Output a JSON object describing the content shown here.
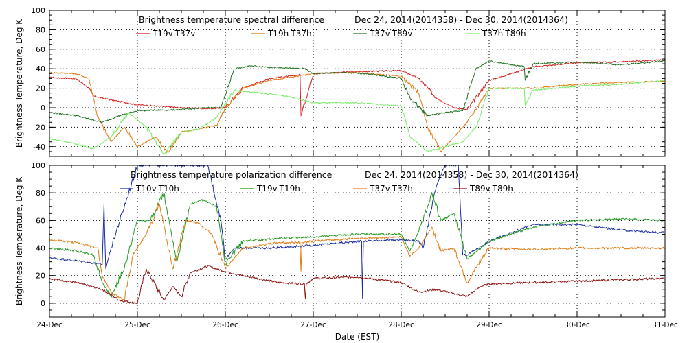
{
  "chart_data": [
    {
      "type": "line",
      "title": "Brightness temperature spectral difference",
      "period": "Dec 24, 2014(2014358) - Dec 30, 2014(2014364)",
      "ylabel": "Brightness Temperature, Deg K",
      "xlabel": "",
      "xlim": [
        "2014-12-24",
        "2014-12-31"
      ],
      "ylim": [
        -50,
        100
      ],
      "yticks": [
        -40,
        -20,
        0,
        20,
        40,
        60,
        80,
        100
      ],
      "grid": true,
      "legend_position": "top",
      "series": [
        {
          "name": "T19v-T37v",
          "color": "#d42020",
          "x": [
            24.0,
            24.3,
            24.45,
            24.5,
            24.7,
            25.0,
            25.5,
            25.8,
            26.0,
            26.2,
            26.5,
            26.8,
            26.85,
            26.86,
            27.0,
            27.5,
            28.0,
            28.2,
            28.4,
            28.6,
            28.75,
            29.0,
            29.5,
            30.0,
            30.5,
            31.0
          ],
          "y": [
            31,
            30,
            20,
            12,
            8,
            3,
            0,
            -1,
            0,
            20,
            30,
            33,
            34,
            -8,
            35,
            37,
            38,
            30,
            10,
            0,
            -2,
            28,
            42,
            46,
            47,
            49
          ]
        },
        {
          "name": "T19h-T37h",
          "color": "#e07a10",
          "x": [
            24.0,
            24.3,
            24.45,
            24.55,
            24.7,
            24.85,
            25.0,
            25.2,
            25.35,
            25.5,
            25.7,
            25.9,
            26.0,
            26.2,
            26.5,
            26.8,
            27.0,
            27.5,
            28.0,
            28.2,
            28.3,
            28.45,
            28.6,
            28.75,
            29.0,
            29.5,
            30.0,
            30.5,
            31.0
          ],
          "y": [
            36,
            35,
            30,
            -10,
            -35,
            -20,
            -40,
            -30,
            -46,
            -25,
            -22,
            -18,
            0,
            20,
            28,
            32,
            35,
            36,
            32,
            15,
            -20,
            -45,
            -30,
            -15,
            20,
            20,
            24,
            26,
            27
          ]
        },
        {
          "name": "T37v-T89v",
          "color": "#1e6e1e",
          "x": [
            24.0,
            24.3,
            24.6,
            24.8,
            25.0,
            25.5,
            25.8,
            25.95,
            26.1,
            26.3,
            26.6,
            26.9,
            27.0,
            27.3,
            27.6,
            28.0,
            28.1,
            28.3,
            28.5,
            28.7,
            28.85,
            29.0,
            29.4,
            29.41,
            29.5,
            30.0,
            30.5,
            31.0
          ],
          "y": [
            -5,
            -8,
            -15,
            -8,
            -3,
            -2,
            0,
            0,
            40,
            43,
            41,
            40,
            35,
            36,
            35,
            30,
            10,
            -8,
            -5,
            -3,
            40,
            48,
            42,
            28,
            45,
            47,
            44,
            48
          ]
        },
        {
          "name": "T37h-T89h",
          "color": "#77ee66",
          "x": [
            24.0,
            24.2,
            24.5,
            24.7,
            24.9,
            25.1,
            25.3,
            25.5,
            25.7,
            25.9,
            26.1,
            26.4,
            26.7,
            27.0,
            27.5,
            28.0,
            28.1,
            28.3,
            28.5,
            28.7,
            28.85,
            29.0,
            29.4,
            29.41,
            29.5,
            30.0,
            30.5,
            31.0
          ],
          "y": [
            -32,
            -35,
            -42,
            -30,
            -5,
            -20,
            -48,
            -25,
            -22,
            -10,
            18,
            15,
            12,
            5,
            5,
            2,
            -30,
            -45,
            -40,
            -35,
            -20,
            20,
            20,
            2,
            18,
            22,
            24,
            28
          ]
        }
      ]
    },
    {
      "type": "line",
      "title": "Brightness temperature polarization difference",
      "period": "Dec 24, 2014(2014358) - Dec 30, 2014(2014364)",
      "ylabel": "Brightness Temperature, Deg K",
      "xlabel": "Date (EST)",
      "xlim": [
        "2014-12-24",
        "2014-12-31"
      ],
      "ylim": [
        -10,
        100
      ],
      "yticks": [
        0,
        20,
        40,
        60,
        80,
        100
      ],
      "xticks": [
        "24-Dec",
        "25-Dec",
        "26-Dec",
        "27-Dec",
        "28-Dec",
        "29-Dec",
        "30-Dec",
        "31-Dec"
      ],
      "grid": true,
      "legend_position": "top",
      "series": [
        {
          "name": "T10v-T10h",
          "color": "#1a2aa0",
          "x": [
            24.0,
            24.4,
            24.6,
            24.62,
            24.64,
            24.7,
            24.9,
            25.0,
            25.2,
            25.4,
            25.6,
            25.8,
            25.95,
            26.0,
            26.1,
            26.5,
            27.0,
            27.55,
            27.56,
            27.57,
            28.0,
            28.2,
            28.25,
            28.4,
            28.5,
            28.65,
            28.7,
            28.75,
            29.0,
            29.5,
            30.0,
            30.5,
            31.0
          ],
          "y": [
            33,
            30,
            28,
            72,
            25,
            40,
            80,
            100,
            100,
            100,
            100,
            100,
            60,
            32,
            40,
            40,
            42,
            45,
            3,
            45,
            46,
            45,
            40,
            85,
            100,
            100,
            35,
            35,
            45,
            57,
            57,
            53,
            51
          ]
        },
        {
          "name": "T19v-T19h",
          "color": "#1e9a1e",
          "x": [
            24.0,
            24.3,
            24.5,
            24.6,
            24.7,
            24.85,
            25.0,
            25.15,
            25.3,
            25.45,
            25.6,
            25.75,
            25.9,
            26.0,
            26.2,
            26.6,
            27.0,
            27.5,
            28.0,
            28.1,
            28.2,
            28.35,
            28.45,
            28.6,
            28.75,
            29.0,
            29.5,
            30.0,
            30.5,
            31.0
          ],
          "y": [
            40,
            38,
            35,
            15,
            5,
            25,
            60,
            60,
            80,
            30,
            72,
            75,
            70,
            28,
            45,
            47,
            48,
            50,
            50,
            38,
            52,
            80,
            60,
            65,
            32,
            45,
            55,
            60,
            61,
            60
          ]
        },
        {
          "name": "T37v-T37h",
          "color": "#e07a10",
          "x": [
            24.0,
            24.3,
            24.55,
            24.6,
            24.7,
            24.85,
            24.95,
            25.1,
            25.25,
            25.4,
            25.55,
            25.7,
            25.85,
            26.0,
            26.2,
            26.6,
            26.85,
            26.86,
            26.87,
            27.0,
            27.5,
            28.0,
            28.1,
            28.2,
            28.35,
            28.45,
            28.6,
            28.75,
            29.0,
            29.5,
            30.0,
            30.5,
            31.0
          ],
          "y": [
            46,
            44,
            40,
            20,
            8,
            2,
            35,
            50,
            72,
            25,
            60,
            58,
            50,
            25,
            40,
            44,
            44,
            23,
            44,
            45,
            47,
            48,
            34,
            40,
            55,
            38,
            40,
            15,
            40,
            39,
            40,
            40,
            40
          ]
        },
        {
          "name": "T89v-T89h",
          "color": "#8c1010",
          "x": [
            24.0,
            24.3,
            24.6,
            24.8,
            25.0,
            25.1,
            25.3,
            25.4,
            25.5,
            25.6,
            25.8,
            26.0,
            26.2,
            26.6,
            26.9,
            26.91,
            26.92,
            27.0,
            27.5,
            28.0,
            28.2,
            28.4,
            28.6,
            28.75,
            28.9,
            29.0,
            29.5,
            30.0,
            30.5,
            31.0
          ],
          "y": [
            18,
            15,
            10,
            2,
            0,
            25,
            2,
            12,
            5,
            22,
            27,
            23,
            20,
            15,
            14,
            3,
            14,
            18,
            19,
            15,
            8,
            10,
            7,
            5,
            12,
            14,
            15,
            16,
            17,
            18
          ]
        }
      ]
    }
  ]
}
